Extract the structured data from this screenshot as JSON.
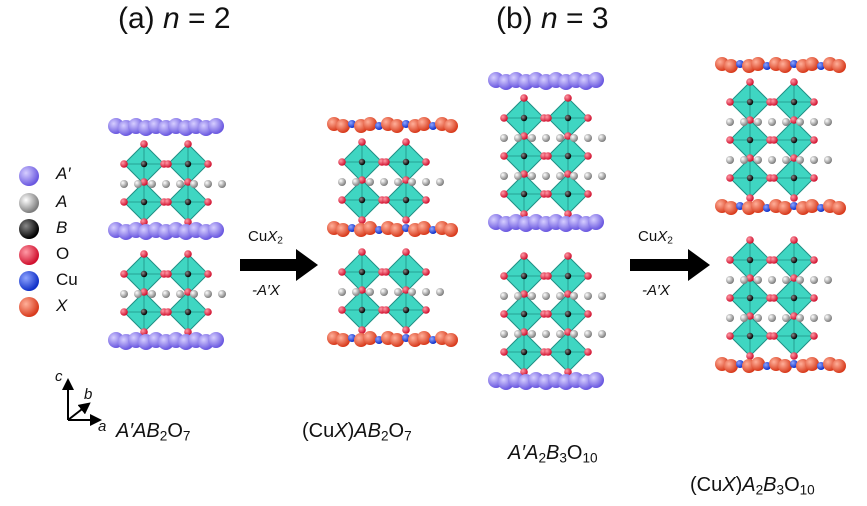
{
  "panels": {
    "a": {
      "label": "(a)",
      "n_var": "n",
      "eq": " = 2"
    },
    "b": {
      "label": "(b)",
      "n_var": "n",
      "eq": " = 3"
    }
  },
  "legend": [
    {
      "label": "A′",
      "italic": true,
      "color": "#8c7cf0",
      "icon": "A-prime-sphere-icon"
    },
    {
      "label": "A",
      "italic": true,
      "color": "#d8d8d8",
      "icon": "A-sphere-icon"
    },
    {
      "label": "B",
      "italic": true,
      "color": "#111111",
      "icon": "B-sphere-icon"
    },
    {
      "label": "O",
      "italic": false,
      "color": "#e8334a",
      "icon": "O-sphere-icon"
    },
    {
      "label": "Cu",
      "italic": false,
      "color": "#2447e0",
      "icon": "Cu-sphere-icon"
    },
    {
      "label": "X",
      "italic": true,
      "color": "#f06040",
      "icon": "X-sphere-icon"
    }
  ],
  "axes": {
    "c": "c",
    "b": "b",
    "a": "a"
  },
  "arrows": [
    {
      "top": "CuX₂",
      "bottom": "-A′X"
    },
    {
      "top": "CuX₂",
      "bottom": "-A′X"
    }
  ],
  "formulas": [
    {
      "parts": [
        [
          "A′AB",
          "i"
        ],
        [
          "2",
          "sub"
        ],
        [
          "O",
          ""
        ],
        [
          "7",
          "sub"
        ]
      ]
    },
    {
      "parts": [
        [
          "(Cu",
          ""
        ],
        [
          "X",
          "i"
        ],
        [
          ")",
          ""
        ],
        [
          "AB",
          "i"
        ],
        [
          "2",
          "sub"
        ],
        [
          "O",
          ""
        ],
        [
          "7",
          "sub"
        ]
      ]
    },
    {
      "parts": [
        [
          "A′A",
          "i"
        ],
        [
          "2",
          "sub"
        ],
        [
          "B",
          "i"
        ],
        [
          "3",
          "sub"
        ],
        [
          "O",
          ""
        ],
        [
          "10",
          "sub"
        ]
      ]
    },
    {
      "parts": [
        [
          "(Cu",
          ""
        ],
        [
          "X",
          "i"
        ],
        [
          ")",
          ""
        ],
        [
          "A",
          "i"
        ],
        [
          "2",
          "sub"
        ],
        [
          "B",
          "i"
        ],
        [
          "3",
          "sub"
        ],
        [
          "O",
          ""
        ],
        [
          "10",
          "sub"
        ]
      ]
    }
  ],
  "colors": {
    "octahedron": "#3fd6c2",
    "octahedron_dark": "#1f8f84",
    "A_prime": "#8c7cf0",
    "A": "#bdbdbd",
    "O": "#e8334a",
    "Cu": "#2447e0",
    "X": "#f06040",
    "arrow": "#000000"
  }
}
